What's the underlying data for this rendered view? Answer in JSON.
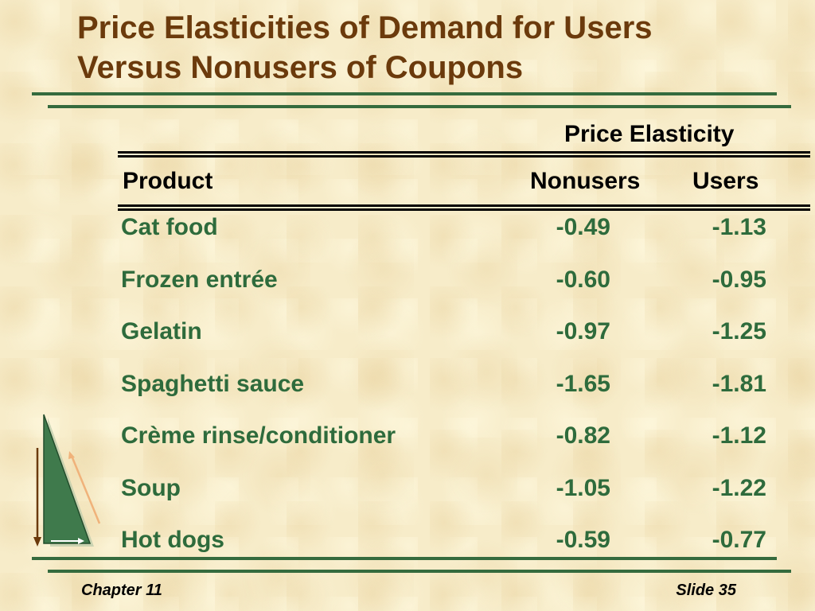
{
  "slide": {
    "title_line1": "Price Elasticities of Demand for Users",
    "title_line2": "Versus Nonusers of Coupons"
  },
  "table": {
    "group_header": "Price Elasticity",
    "columns": [
      "Product",
      "Nonusers",
      "Users"
    ],
    "rows": [
      {
        "product": "Cat food",
        "nonusers": "-0.49",
        "users": "-1.13"
      },
      {
        "product": "Frozen entrée",
        "nonusers": "-0.60",
        "users": "-0.95"
      },
      {
        "product": "Gelatin",
        "nonusers": "-0.97",
        "users": "-1.25"
      },
      {
        "product": "Spaghetti sauce",
        "nonusers": "-1.65",
        "users": "-1.81"
      },
      {
        "product": "Crème rinse/conditioner",
        "nonusers": "-0.82",
        "users": "-1.12"
      },
      {
        "product": "Soup",
        "nonusers": "-1.05",
        "users": "-1.22"
      },
      {
        "product": "Hot dogs",
        "nonusers": "-0.59",
        "users": "-0.77"
      }
    ]
  },
  "footer": {
    "left": "Chapter 11",
    "right": "Slide 35"
  },
  "colors": {
    "title": "#6b3a0c",
    "rule": "#356b3e",
    "cell_text": "#2e6b3c",
    "background": "#f7ecc9"
  }
}
